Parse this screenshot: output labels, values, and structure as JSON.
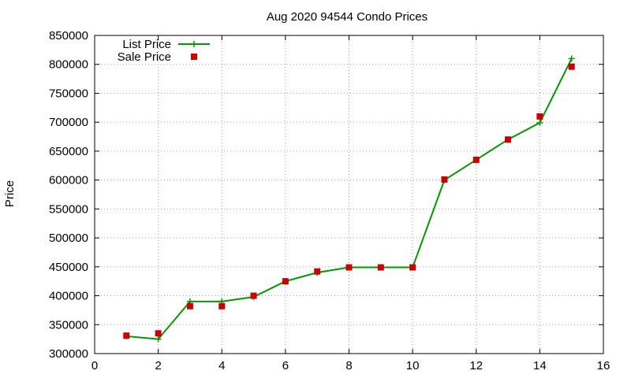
{
  "chart_data": {
    "type": "line",
    "title": "Aug 2020 94544 Condo Prices",
    "xlabel": "",
    "ylabel": "Price",
    "xlim": [
      0,
      16
    ],
    "ylim": [
      300000,
      850000
    ],
    "x_ticks": [
      0,
      2,
      4,
      6,
      8,
      10,
      12,
      14,
      16
    ],
    "y_ticks": [
      300000,
      350000,
      400000,
      450000,
      500000,
      550000,
      600000,
      650000,
      700000,
      750000,
      800000,
      850000
    ],
    "grid": true,
    "legend_position": "top-left",
    "series": [
      {
        "name": "List Price",
        "style": "line-with-plus-markers",
        "color": "#009900",
        "x": [
          1,
          2,
          3,
          4,
          5,
          6,
          7,
          8,
          9,
          10,
          11,
          12,
          13,
          14,
          15
        ],
        "values": [
          330000,
          325000,
          390000,
          390000,
          398000,
          425000,
          440000,
          449000,
          449000,
          449000,
          600000,
          635000,
          670000,
          699000,
          810000
        ]
      },
      {
        "name": "Sale Price",
        "style": "square-markers",
        "color": "#cc0000",
        "x": [
          1,
          2,
          3,
          4,
          5,
          6,
          7,
          8,
          9,
          10,
          11,
          12,
          13,
          14,
          15
        ],
        "values": [
          331000,
          335000,
          382000,
          382000,
          400000,
          425000,
          442000,
          449000,
          449000,
          449000,
          601000,
          635000,
          670000,
          710000,
          796000
        ]
      }
    ]
  }
}
